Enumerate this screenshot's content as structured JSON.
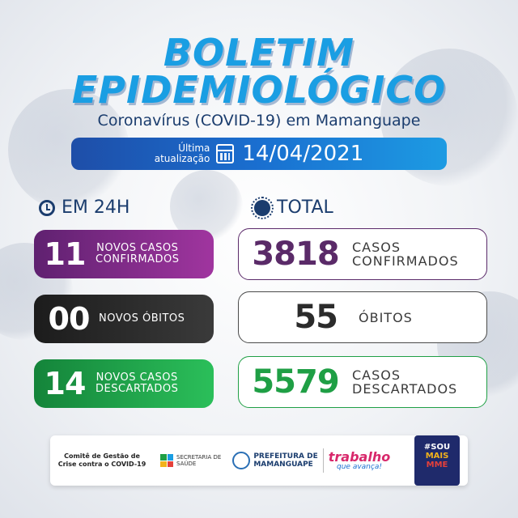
{
  "header": {
    "title_line1": "BOLETIM",
    "title_line2": "EPIDEMIOLÓGICO",
    "subtitle": "Coronavírus (COVID-19) em Mamanguape"
  },
  "update": {
    "label_line1": "Última",
    "label_line2": "atualização",
    "date": "14/04/2021"
  },
  "sections": {
    "left": {
      "icon": "clock-icon",
      "title": "EM 24H"
    },
    "right": {
      "icon": "virus-icon",
      "title": "TOTAL"
    }
  },
  "daily": [
    {
      "value": "11",
      "label_line1": "NOVOS CASOS",
      "label_line2": "CONFIRMADOS",
      "color": "#7a2a86"
    },
    {
      "value": "00",
      "label_line1": "NOVOS ÓBITOS",
      "label_line2": "",
      "color": "#2b2b2b"
    },
    {
      "value": "14",
      "label_line1": "NOVOS CASOS",
      "label_line2": "DESCARTADOS",
      "color": "#1f9f45"
    }
  ],
  "total": [
    {
      "value": "3818",
      "label_line1": "CASOS",
      "label_line2": "CONFIRMADOS",
      "color": "#5a2a68"
    },
    {
      "value": "55",
      "label_line1": "ÓBITOS",
      "label_line2": "",
      "color": "#2b2b2b"
    },
    {
      "value": "5579",
      "label_line1": "CASOS",
      "label_line2": "DESCARTADOS",
      "color": "#1f9f45"
    }
  ],
  "footer": {
    "committee_line1": "Comitê de Gestão de",
    "committee_line2": "Crise contra o COVID-19",
    "secretaria_line1": "SECRETARIA DE",
    "secretaria_line2": "SAÚDE",
    "prefeitura_line1": "PREFEITURA DE",
    "prefeitura_line2": "MAMANGUAPE",
    "slogan_line1": "trabalho",
    "slogan_line2": "que avança!",
    "badge_line1": "#SOU",
    "badge_line2": "MAIS",
    "badge_line3": "MME"
  }
}
